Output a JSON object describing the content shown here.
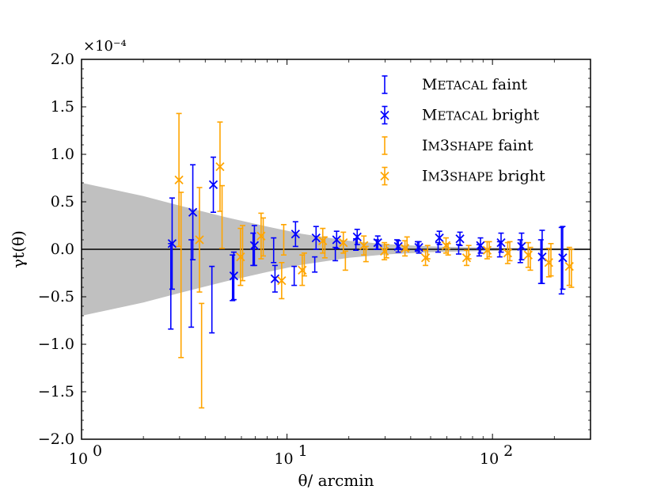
{
  "chart_data": {
    "type": "scatter",
    "title": "",
    "xlabel": "θ/ arcmin",
    "ylabel": "γt(θ)",
    "xscale": "log",
    "xlim": [
      1,
      300
    ],
    "ylim": [
      -2.0,
      2.0
    ],
    "y_multiplier": "×10⁻⁴",
    "y_ticks": [
      -2.0,
      -1.5,
      -1.0,
      -0.5,
      0.0,
      0.5,
      1.0,
      1.5,
      2.0
    ],
    "y_tick_labels": [
      "−2.0",
      "−1.5",
      "−1.0",
      "−0.5",
      "0.0",
      "0.5",
      "1.0",
      "1.5",
      "2.0"
    ],
    "x_ticks": [
      1,
      10,
      100
    ],
    "x_tick_labels": [
      {
        "base": "10",
        "exp": "0"
      },
      {
        "base": "10",
        "exp": "1"
      },
      {
        "base": "10",
        "exp": "2"
      }
    ],
    "zero_line": 0.0,
    "band": {
      "x": [
        1,
        2,
        3,
        5,
        8,
        12,
        20,
        30,
        50,
        80,
        120,
        200,
        300
      ],
      "upper": [
        0.7,
        0.56,
        0.46,
        0.34,
        0.24,
        0.16,
        0.09,
        0.055,
        0.03,
        0.02,
        0.015,
        0.01,
        0.008
      ],
      "lower": [
        -0.7,
        -0.56,
        -0.46,
        -0.34,
        -0.24,
        -0.16,
        -0.09,
        -0.055,
        -0.03,
        -0.02,
        -0.015,
        -0.01,
        -0.008
      ]
    },
    "band_color": "#c0c0c0",
    "series": [
      {
        "name": "Metacal faint",
        "name_parts": [
          {
            "t": "M",
            "sc": false
          },
          {
            "t": "ETACAL",
            "sc": true
          },
          {
            "t": " faint",
            "sc": false
          }
        ],
        "color": "#0000ff",
        "marker": "none",
        "x": [
          2.72,
          3.42,
          4.31,
          5.43,
          6.84,
          8.61,
          10.84,
          13.65,
          17.19,
          21.64,
          27.25,
          34.31,
          43.19,
          54.38,
          68.47,
          86.2,
          108.5,
          136.6,
          172.0,
          216.6
        ],
        "y": [
          -0.39,
          -0.36,
          -0.53,
          -0.3,
          0.0,
          -0.01,
          -0.28,
          -0.16,
          -0.05,
          0.05,
          0.05,
          0.05,
          0.03,
          0.02,
          0.0,
          -0.01,
          0.0,
          -0.02,
          -0.13,
          -0.12
        ],
        "err": [
          0.45,
          0.46,
          0.35,
          0.24,
          0.17,
          0.13,
          0.1,
          0.08,
          0.07,
          0.06,
          0.05,
          0.05,
          0.05,
          0.05,
          0.05,
          0.06,
          0.08,
          0.12,
          0.23,
          0.35
        ]
      },
      {
        "name": "Metacal bright",
        "name_parts": [
          {
            "t": "M",
            "sc": false
          },
          {
            "t": "ETACAL",
            "sc": true
          },
          {
            "t": " bright",
            "sc": false
          }
        ],
        "color": "#0000ff",
        "marker": "x",
        "x": [
          2.76,
          3.48,
          4.38,
          5.51,
          6.94,
          8.74,
          11.0,
          13.85,
          17.44,
          21.96,
          27.65,
          34.81,
          43.82,
          55.17,
          69.46,
          87.44,
          110.1,
          138.6,
          174.5,
          219.7
        ],
        "y": [
          0.06,
          0.39,
          0.68,
          -0.28,
          0.04,
          -0.31,
          0.16,
          0.12,
          0.1,
          0.13,
          0.07,
          0.03,
          0.02,
          0.12,
          0.11,
          0.04,
          0.07,
          0.03,
          -0.08,
          -0.09
        ],
        "err": [
          0.48,
          0.5,
          0.29,
          0.25,
          0.21,
          0.14,
          0.13,
          0.12,
          0.09,
          0.08,
          0.07,
          0.06,
          0.06,
          0.07,
          0.07,
          0.08,
          0.1,
          0.14,
          0.28,
          0.33
        ]
      },
      {
        "name": "Im3shape faint",
        "name_parts": [
          {
            "t": "I",
            "sc": false
          },
          {
            "t": "M",
            "sc": true
          },
          {
            "t": "3",
            "sc": false
          },
          {
            "t": "SHAPE",
            "sc": true
          },
          {
            "t": " faint",
            "sc": false
          }
        ],
        "color": "#ffa500",
        "marker": "none",
        "x": [
          3.05,
          3.84,
          4.83,
          6.08,
          7.66,
          9.64,
          12.14,
          15.28,
          19.24,
          24.22,
          30.5,
          38.39,
          48.33,
          60.85,
          76.61,
          96.45,
          121.4,
          152.9,
          192.5,
          242.3
        ],
        "y": [
          -0.27,
          -1.12,
          0.34,
          -0.04,
          0.13,
          0.1,
          -0.16,
          0.02,
          -0.12,
          -0.05,
          -0.02,
          0.06,
          -0.03,
          0.0,
          -0.03,
          0.0,
          -0.02,
          -0.1,
          -0.11,
          -0.2
        ],
        "err": [
          0.87,
          0.55,
          0.33,
          0.29,
          0.2,
          0.16,
          0.12,
          0.11,
          0.1,
          0.08,
          0.07,
          0.07,
          0.07,
          0.06,
          0.07,
          0.08,
          0.1,
          0.12,
          0.17,
          0.2
        ]
      },
      {
        "name": "Im3shape bright",
        "name_parts": [
          {
            "t": "I",
            "sc": false
          },
          {
            "t": "M",
            "sc": true
          },
          {
            "t": "3",
            "sc": false
          },
          {
            "t": "SHAPE",
            "sc": true
          },
          {
            "t": " bright",
            "sc": false
          }
        ],
        "color": "#ffa500",
        "marker": "x",
        "x": [
          2.98,
          3.75,
          4.72,
          5.94,
          7.48,
          9.42,
          11.86,
          14.93,
          18.8,
          23.66,
          29.79,
          37.51,
          47.22,
          59.44,
          74.83,
          94.21,
          118.6,
          149.3,
          188.0,
          236.7
        ],
        "y": [
          0.73,
          0.1,
          0.87,
          -0.08,
          0.14,
          -0.33,
          -0.22,
          0.09,
          0.07,
          0.04,
          -0.02,
          0.01,
          -0.09,
          0.04,
          -0.09,
          -0.01,
          -0.04,
          -0.06,
          -0.14,
          -0.18
        ],
        "err": [
          0.7,
          0.55,
          0.47,
          0.3,
          0.24,
          0.19,
          0.16,
          0.13,
          0.11,
          0.1,
          0.09,
          0.08,
          0.08,
          0.08,
          0.08,
          0.09,
          0.11,
          0.13,
          0.15,
          0.2
        ]
      }
    ],
    "legend_loc": "top-right"
  }
}
